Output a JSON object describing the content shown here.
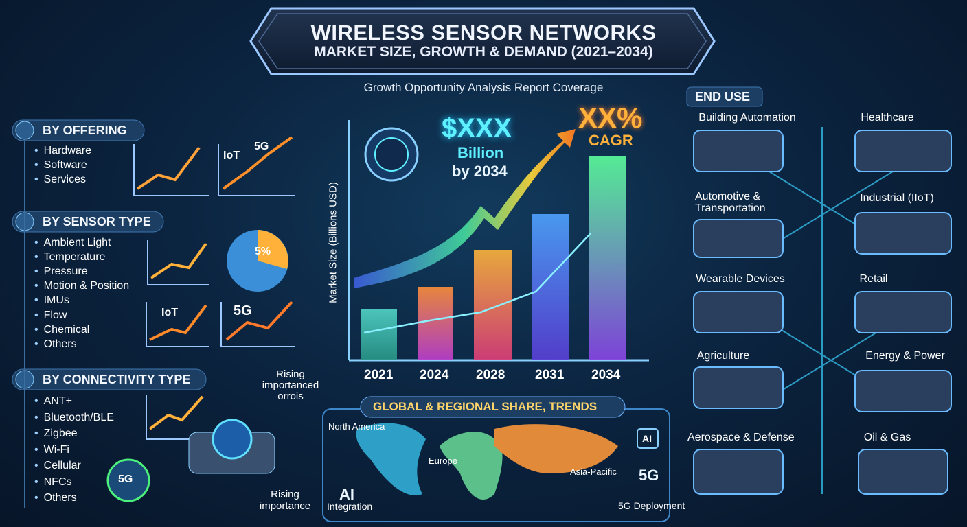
{
  "header": {
    "title": "WIRELESS SENSOR NETWORKS",
    "subtitle": "MARKET SIZE, GROWTH & DEMAND (2021–2034)",
    "tagline": "Growth Opportunity Analysis Report Coverage"
  },
  "segments": [
    {
      "title": "BY OFFERING",
      "items": [
        "Hardware",
        "Software",
        "Services"
      ]
    },
    {
      "title": "BY SENSOR TYPE",
      "items": [
        "Ambient Light",
        "Temperature",
        "Pressure",
        "Motion & Position",
        "IMUs",
        "Flow",
        "Chemical",
        "Others"
      ]
    },
    {
      "title": "BY CONNECTIVITY TYPE",
      "items": [
        "ANT+",
        "Bluetooth/BLE",
        "Zigbee",
        "Wi-Fi",
        "Cellular",
        "NFCs",
        "Others"
      ]
    }
  ],
  "side_graphics": {
    "labels": [
      "IoT",
      "5G",
      "5%",
      "IoT",
      "5G",
      "5G"
    ],
    "rising_top": "Rising importanced orrois",
    "rising_bottom": "Rising importance"
  },
  "growth": {
    "axis_label": "Market Size (Billions USD)",
    "value": "$XXX",
    "unit": "Billion",
    "by": "by 2034",
    "cagr": "XX%",
    "cagr_label": "CAGR",
    "years": [
      "2021",
      "2024",
      "2028",
      "2031",
      "2034"
    ]
  },
  "regional": {
    "title": "GLOBAL & REGIONAL SHARE, TRENDS",
    "regions": [
      "North America",
      "Europe",
      "Asia-Pacific"
    ],
    "ai_icon": "AI",
    "ai": "AI",
    "ai_caption": "Integration",
    "g5_icon": "5G",
    "g5_caption": "5G Deployment"
  },
  "end_use": {
    "title": "END USE",
    "items": [
      "Building Automation",
      "Healthcare",
      "Automotive & Transportation",
      "Industrial (IIoT)",
      "Wearable Devices",
      "Retail",
      "Agriculture",
      "Energy & Power",
      "Aerospace & Defense",
      "Oil & Gas"
    ]
  }
}
